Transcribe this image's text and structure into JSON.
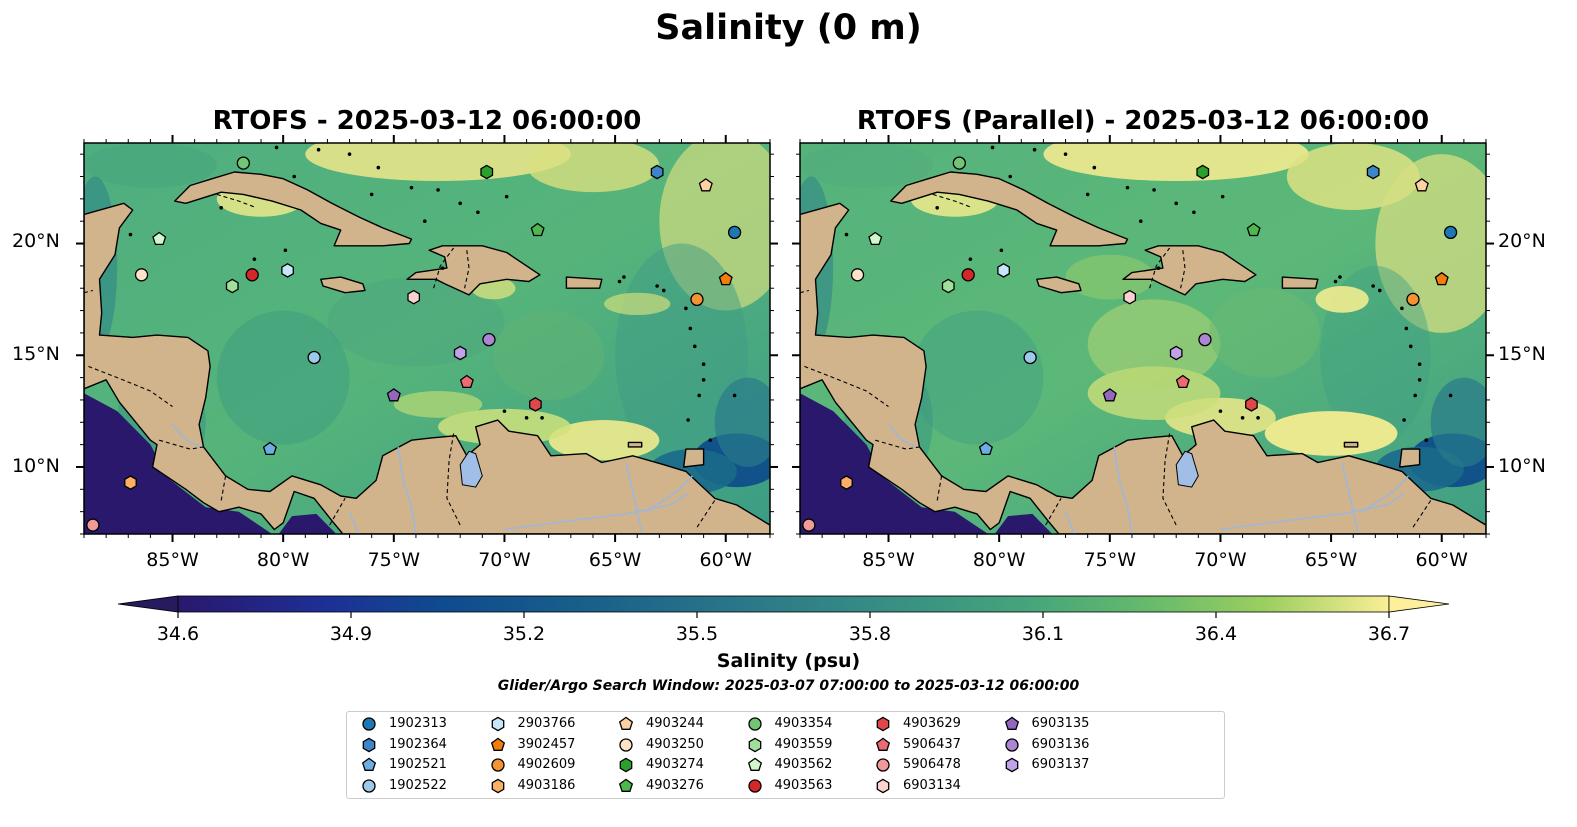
{
  "figure": {
    "title": "Salinity (0 m)",
    "panels": [
      {
        "title": "RTOFS - 2025-03-12 06:00:00"
      },
      {
        "title": "RTOFS (Parallel) - 2025-03-12 06:00:00"
      }
    ],
    "extent": {
      "lon_min": -89,
      "lon_max": -58,
      "lat_min": 7,
      "lat_max": 24.5
    },
    "lon_ticks": [
      "85°W",
      "80°W",
      "75°W",
      "70°W",
      "65°W",
      "60°W"
    ],
    "lon_tick_values": [
      -85,
      -80,
      -75,
      -70,
      -65,
      -60
    ],
    "lat_ticks": [
      "20°N",
      "15°N",
      "10°N"
    ],
    "lat_tick_values": [
      20,
      15,
      10
    ],
    "colorbar": {
      "label": "Salinity (psu)",
      "ticks": [
        "34.6",
        "34.9",
        "35.2",
        "35.5",
        "35.8",
        "36.1",
        "36.4",
        "36.7"
      ],
      "tick_values": [
        34.6,
        34.9,
        35.2,
        35.5,
        35.8,
        36.1,
        36.4,
        36.7
      ],
      "vmin": 34.6,
      "vmax": 36.7,
      "colormap": "haline",
      "extend": "both"
    },
    "search_window": "Glider/Argo Search Window: 2025-03-07 07:00:00 to 2025-03-12 06:00:00",
    "land_color": "#d2b48c",
    "lake_color": "#a0bee6"
  },
  "legend": [
    {
      "id": "1902313",
      "marker": "circle",
      "color": "#1f77b4"
    },
    {
      "id": "1902364",
      "marker": "hexagon",
      "color": "#3d85c6"
    },
    {
      "id": "1902521",
      "marker": "pentagon",
      "color": "#6aaee3"
    },
    {
      "id": "1902522",
      "marker": "circle",
      "color": "#9ecae9"
    },
    {
      "id": "2903766",
      "marker": "hexagon",
      "color": "#c6e6fb"
    },
    {
      "id": "3902457",
      "marker": "pentagon",
      "color": "#f27d0c"
    },
    {
      "id": "4902609",
      "marker": "circle",
      "color": "#f39433"
    },
    {
      "id": "4903186",
      "marker": "hexagon",
      "color": "#fbb066"
    },
    {
      "id": "4903244",
      "marker": "pentagon",
      "color": "#fdd1a4"
    },
    {
      "id": "4903250",
      "marker": "circle",
      "color": "#ffe3c7"
    },
    {
      "id": "4903274",
      "marker": "hexagon",
      "color": "#2ca02c"
    },
    {
      "id": "4903276",
      "marker": "pentagon",
      "color": "#4db84d"
    },
    {
      "id": "4903354",
      "marker": "circle",
      "color": "#74c476"
    },
    {
      "id": "4903559",
      "marker": "hexagon",
      "color": "#a1e09a"
    },
    {
      "id": "4903562",
      "marker": "pentagon",
      "color": "#d3f7cd"
    },
    {
      "id": "4903563",
      "marker": "circle",
      "color": "#d62728"
    },
    {
      "id": "4903629",
      "marker": "hexagon",
      "color": "#e0474a"
    },
    {
      "id": "5906437",
      "marker": "pentagon",
      "color": "#ea6b70"
    },
    {
      "id": "5906478",
      "marker": "circle",
      "color": "#f29a98"
    },
    {
      "id": "6903134",
      "marker": "hexagon",
      "color": "#fcd2cf"
    },
    {
      "id": "6903135",
      "marker": "pentagon",
      "color": "#9467bd"
    },
    {
      "id": "6903136",
      "marker": "circle",
      "color": "#ac86d4"
    },
    {
      "id": "6903137",
      "marker": "hexagon",
      "color": "#c0a2e8"
    }
  ],
  "chart_data": {
    "type": "scatter",
    "title": "Salinity (0 m)",
    "xlabel": "",
    "ylabel": "",
    "xlim": [
      -89,
      -58
    ],
    "ylim": [
      7,
      24.5
    ],
    "series": [
      {
        "name": "1902313",
        "x": [
          -59.6
        ],
        "y": [
          20.5
        ]
      },
      {
        "name": "1902364",
        "x": [
          -63.1
        ],
        "y": [
          23.2
        ]
      },
      {
        "name": "1902521",
        "x": [
          -80.6
        ],
        "y": [
          10.8
        ]
      },
      {
        "name": "1902522",
        "x": [
          -78.6
        ],
        "y": [
          14.9
        ]
      },
      {
        "name": "2903766",
        "x": [
          -79.8
        ],
        "y": [
          18.8
        ]
      },
      {
        "name": "3902457",
        "x": [
          -60.0
        ],
        "y": [
          18.4
        ]
      },
      {
        "name": "4902609",
        "x": [
          -61.3
        ],
        "y": [
          17.5
        ]
      },
      {
        "name": "4903186",
        "x": [
          -86.9
        ],
        "y": [
          9.3
        ]
      },
      {
        "name": "4903244",
        "x": [
          -60.9
        ],
        "y": [
          22.6
        ]
      },
      {
        "name": "4903250",
        "x": [
          -86.4
        ],
        "y": [
          18.6
        ]
      },
      {
        "name": "4903274",
        "x": [
          -70.8
        ],
        "y": [
          23.2
        ]
      },
      {
        "name": "4903276",
        "x": [
          -68.5
        ],
        "y": [
          20.6
        ]
      },
      {
        "name": "4903354",
        "x": [
          -81.8
        ],
        "y": [
          23.6
        ]
      },
      {
        "name": "4903559",
        "x": [
          -82.3
        ],
        "y": [
          18.1
        ]
      },
      {
        "name": "4903562",
        "x": [
          -85.6
        ],
        "y": [
          20.2
        ]
      },
      {
        "name": "4903563",
        "x": [
          -81.4
        ],
        "y": [
          18.6
        ]
      },
      {
        "name": "4903629",
        "x": [
          -68.6
        ],
        "y": [
          12.8
        ]
      },
      {
        "name": "5906437",
        "x": [
          -71.7
        ],
        "y": [
          13.8
        ]
      },
      {
        "name": "5906478",
        "x": [
          -88.6
        ],
        "y": [
          7.4
        ]
      },
      {
        "name": "6903134",
        "x": [
          -74.1
        ],
        "y": [
          17.6
        ]
      },
      {
        "name": "6903135",
        "x": [
          -75.0
        ],
        "y": [
          13.2
        ]
      },
      {
        "name": "6903136",
        "x": [
          -70.7
        ],
        "y": [
          15.7
        ]
      },
      {
        "name": "6903137",
        "x": [
          -72.0
        ],
        "y": [
          15.1
        ]
      }
    ]
  }
}
